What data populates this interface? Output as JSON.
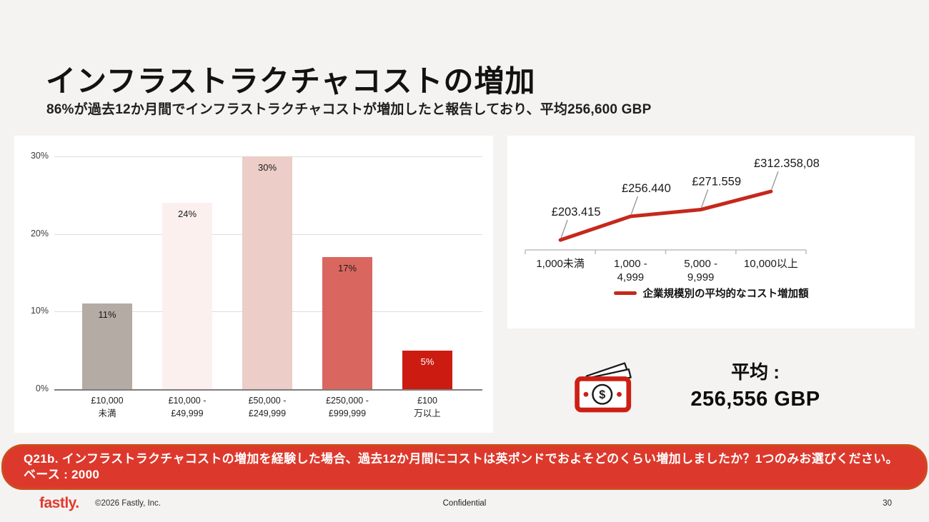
{
  "slide": {
    "title": "インフラストラクチャコストの増加",
    "subtitle": "86%が過去12か月間でインフラストラクチャコストが増加したと報告しており、平均256,600 GBP"
  },
  "chart_data": [
    {
      "type": "bar",
      "title": "",
      "categories": [
        "£10,000\n未満",
        "£10,000 -\n£49,999",
        "£50,000 -\n£249,999",
        "£250,000 -\n£999,999",
        "£100\n万以上"
      ],
      "values": [
        11,
        24,
        30,
        17,
        5
      ],
      "value_labels": [
        "11%",
        "24%",
        "30%",
        "17%",
        "5%"
      ],
      "ylim": [
        0,
        30
      ],
      "yticks": [
        0,
        10,
        20,
        30
      ],
      "ytick_labels": [
        "0%",
        "10%",
        "20%",
        "30%"
      ],
      "grid": true,
      "bar_colors": [
        "#b3aba4",
        "#fbf0ee",
        "#eccdc7",
        "#d9675f",
        "#cc1c12"
      ],
      "value_label_colors": [
        "#1a1a1a",
        "#1a1a1a",
        "#1a1a1a",
        "#1a1a1a",
        "#ffffff"
      ]
    },
    {
      "type": "line",
      "categories": [
        "1,000未満",
        "1,000 -\n4,999",
        "5,000 -\n9,999",
        "10,000以上"
      ],
      "values": [
        203415,
        256440,
        271559,
        312358.08
      ],
      "point_labels": [
        "£203.415",
        "£256.440",
        "£271.559",
        "£312.358,08"
      ],
      "legend": "企業規模別の平均的なコスト増加額",
      "legend_position": "bottom",
      "xlabel": "",
      "ylabel": ""
    }
  ],
  "average": {
    "label": "平均 :",
    "value": "256,556 GBP"
  },
  "banner": {
    "text": "Q21b. インフラストラクチャコストの増加を経験した場合、過去12か月間にコストは英ポンドでおよそどのくらい増加しましたか？1つのみお選びください。ベース : 2000"
  },
  "footer": {
    "logo": "fastly.",
    "copyright": "©2026 Fastly, Inc.",
    "confidential": "Confidential",
    "page": "30"
  },
  "icons": {
    "money_icon": "banknote with dollar sign"
  },
  "colors": {
    "line_red": "#c5281c",
    "banner_bg": "#dc392c",
    "banner_border": "#cc4d1d",
    "logo_red": "#e23a2e",
    "accent_red": "#cc1c12",
    "leader_gray": "#a0a0a0"
  }
}
